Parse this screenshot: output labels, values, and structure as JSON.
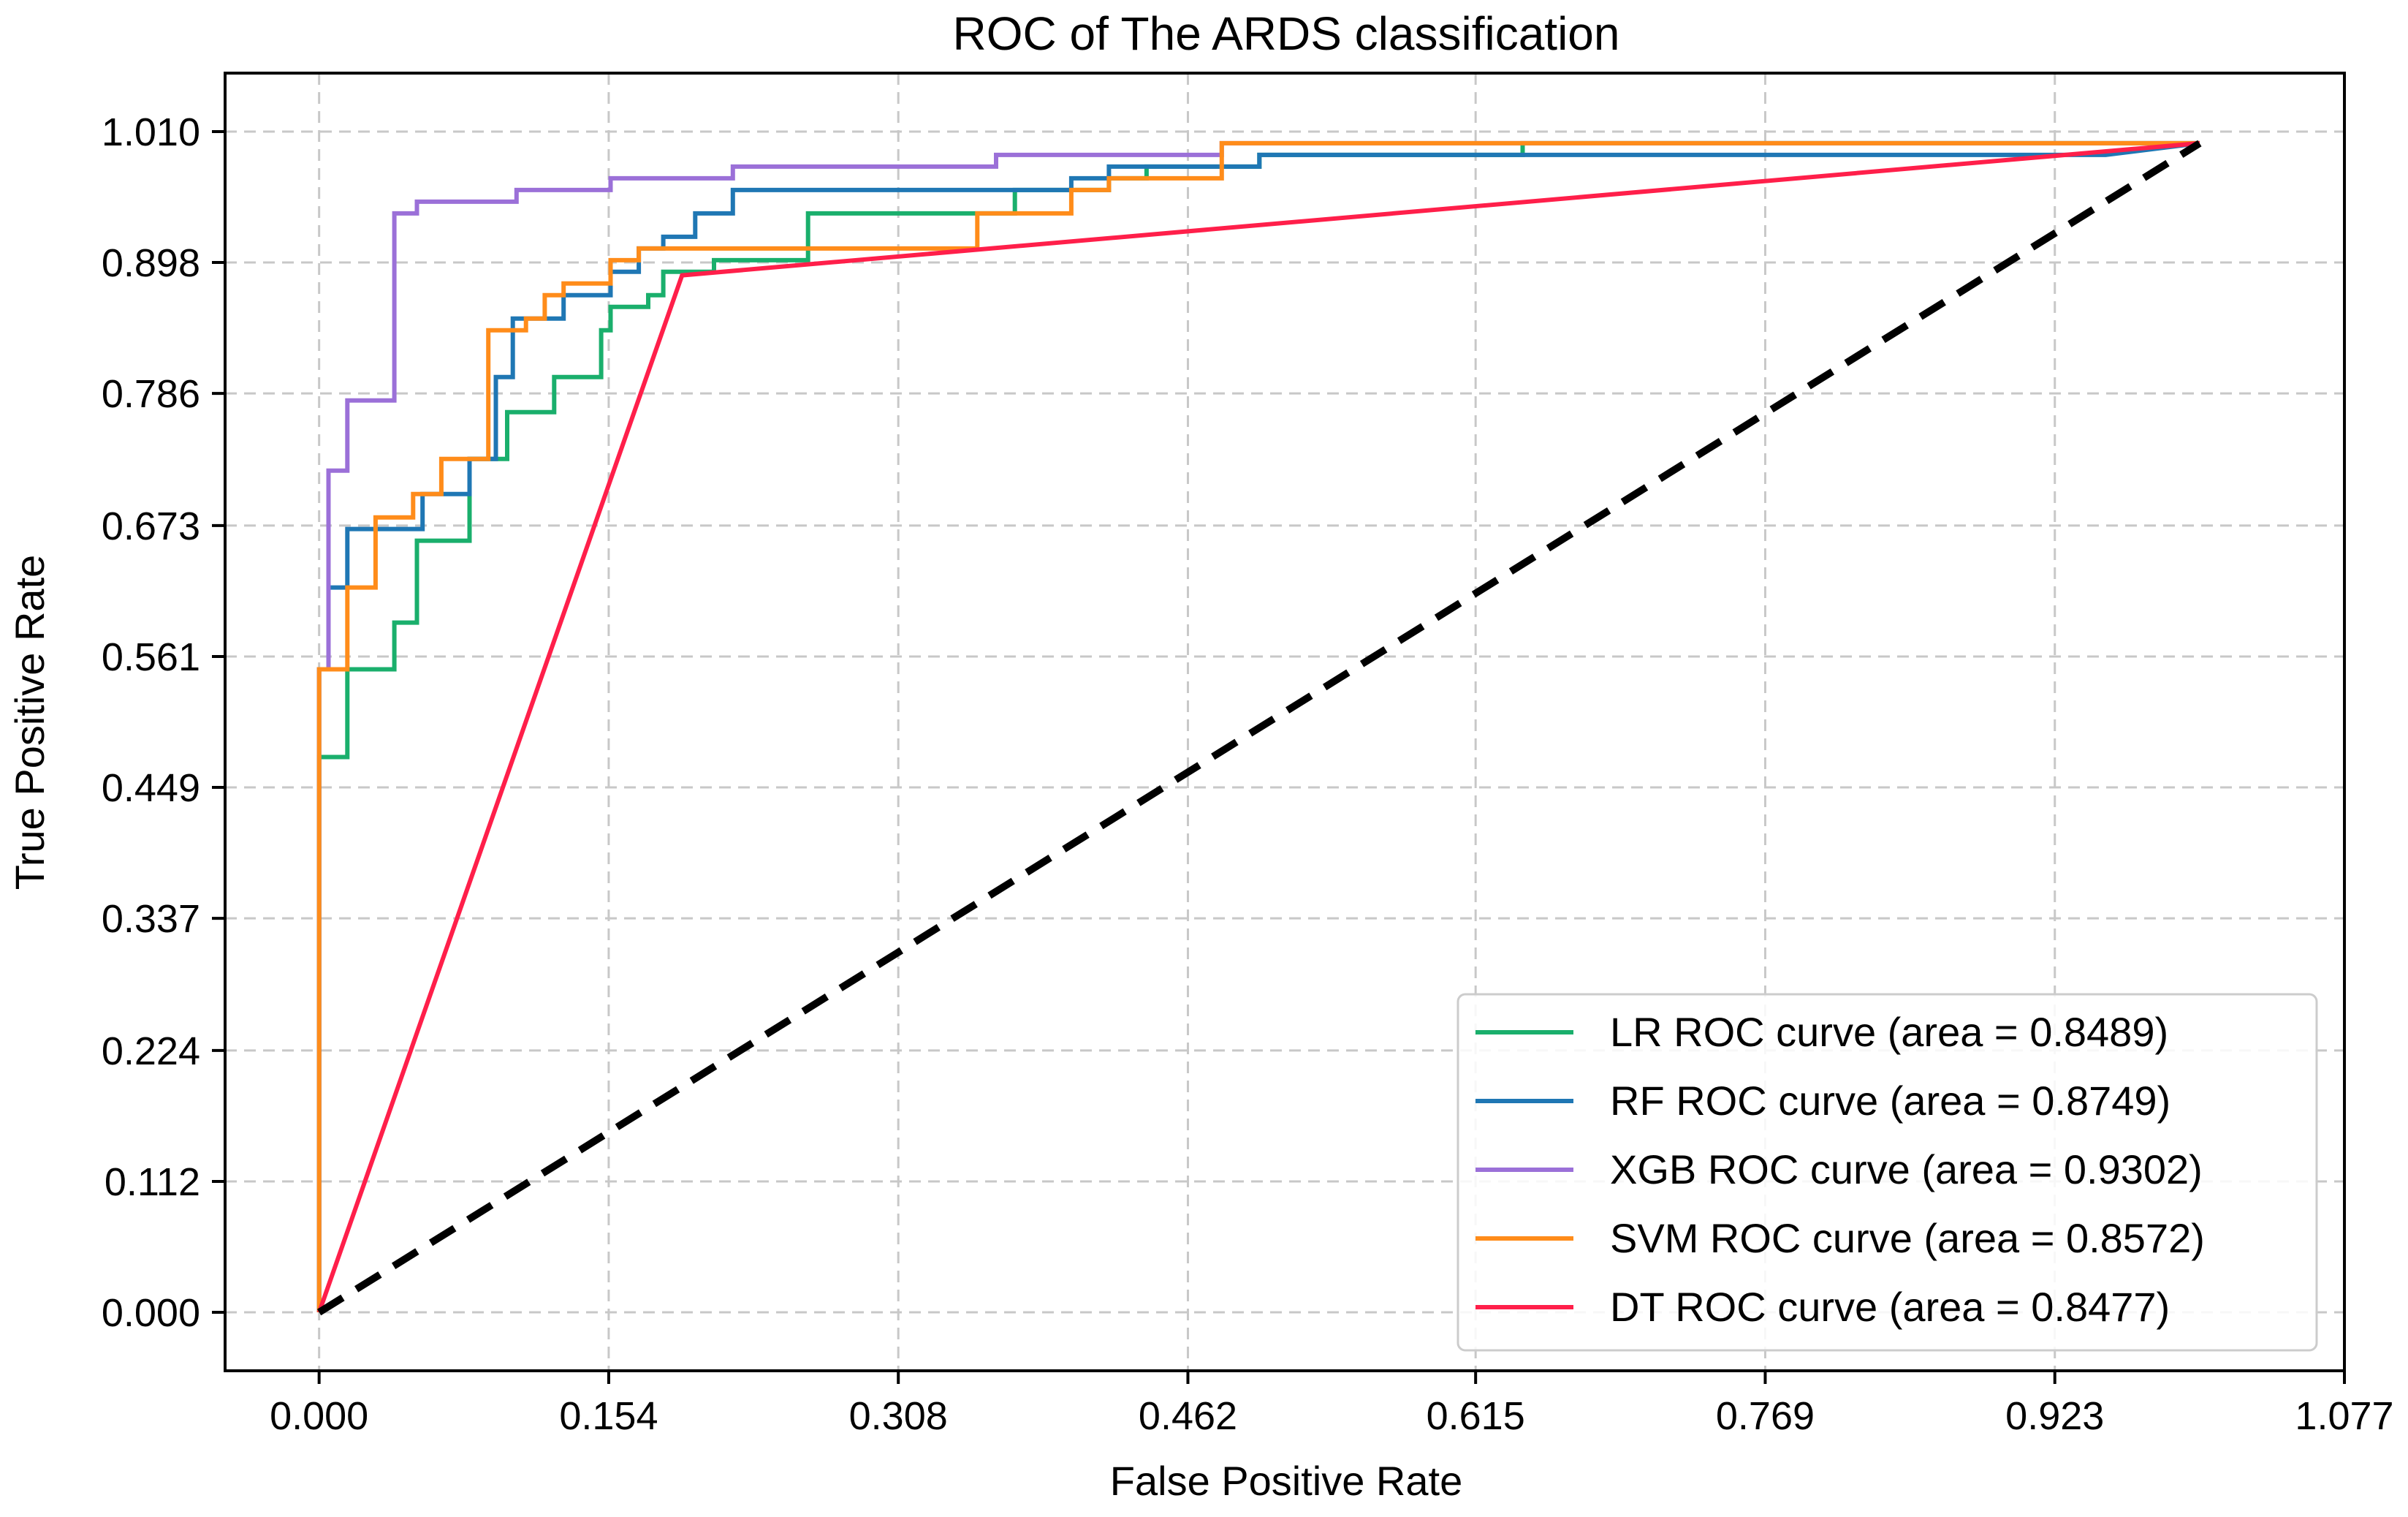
{
  "chart_data": {
    "type": "line",
    "title": "ROC of The ARDS classification",
    "xlabel": "False Positive Rate",
    "ylabel": "True Positive Rate",
    "xlim": [
      -0.05,
      1.077
    ],
    "ylim": [
      -0.05,
      1.06
    ],
    "xticks": [
      0.0,
      0.154,
      0.308,
      0.462,
      0.615,
      0.769,
      0.923,
      1.077
    ],
    "xtick_labels": [
      "0.000",
      "0.154",
      "0.308",
      "0.462",
      "0.615",
      "0.769",
      "0.923",
      "1.077"
    ],
    "yticks": [
      0.0,
      0.112,
      0.224,
      0.337,
      0.449,
      0.561,
      0.673,
      0.786,
      0.898,
      1.01
    ],
    "ytick_labels": [
      "0.000",
      "0.112",
      "0.224",
      "0.337",
      "0.449",
      "0.561",
      "0.673",
      "0.786",
      "0.898",
      "1.010"
    ],
    "grid": true,
    "legend_position": "bottom-right",
    "diagonal": {
      "x": [
        0,
        1
      ],
      "y": [
        0,
        1
      ],
      "color": "#000000",
      "style": "dashed"
    },
    "series": [
      {
        "name": "LR ROC curve (area = 0.8489)",
        "color": "#1aaf6c",
        "x": [
          0,
          0,
          0.005,
          0.005,
          0.015,
          0.015,
          0.04,
          0.04,
          0.052,
          0.052,
          0.08,
          0.08,
          0.1,
          0.1,
          0.125,
          0.125,
          0.15,
          0.15,
          0.155,
          0.155,
          0.175,
          0.175,
          0.183,
          0.183,
          0.21,
          0.21,
          0.26,
          0.26,
          0.37,
          0.37,
          0.4,
          0.4,
          0.42,
          0.42,
          0.44,
          0.44,
          0.5,
          0.5,
          0.55,
          0.55,
          0.64,
          0.64,
          1.0
        ],
        "y": [
          0,
          0.475,
          0.475,
          0.475,
          0.475,
          0.55,
          0.55,
          0.59,
          0.59,
          0.66,
          0.66,
          0.73,
          0.73,
          0.77,
          0.77,
          0.8,
          0.8,
          0.84,
          0.84,
          0.86,
          0.86,
          0.87,
          0.87,
          0.89,
          0.89,
          0.9,
          0.9,
          0.94,
          0.94,
          0.96,
          0.96,
          0.96,
          0.96,
          0.97,
          0.97,
          0.98,
          0.98,
          0.99,
          0.99,
          0.99,
          0.99,
          1.0,
          1.0
        ]
      },
      {
        "name": "RF ROC curve (area = 0.8749)",
        "color": "#1f77b4",
        "x": [
          0,
          0,
          0.005,
          0.005,
          0.015,
          0.015,
          0.055,
          0.055,
          0.08,
          0.08,
          0.094,
          0.094,
          0.103,
          0.103,
          0.13,
          0.13,
          0.155,
          0.155,
          0.17,
          0.17,
          0.183,
          0.183,
          0.2,
          0.2,
          0.22,
          0.22,
          0.4,
          0.4,
          0.42,
          0.42,
          0.44,
          0.44,
          0.5,
          0.5,
          0.52,
          0.52,
          0.95,
          1.0
        ],
        "y": [
          0,
          0.55,
          0.55,
          0.62,
          0.62,
          0.67,
          0.67,
          0.7,
          0.7,
          0.73,
          0.73,
          0.8,
          0.8,
          0.85,
          0.85,
          0.87,
          0.87,
          0.89,
          0.89,
          0.91,
          0.91,
          0.92,
          0.92,
          0.94,
          0.94,
          0.96,
          0.96,
          0.97,
          0.97,
          0.98,
          0.98,
          0.98,
          0.98,
          0.99,
          0.99,
          0.99,
          0.99,
          1.0
        ]
      },
      {
        "name": "XGB ROC curve (area = 0.9302)",
        "color": "#9b70d8",
        "x": [
          0,
          0,
          0.005,
          0.005,
          0.015,
          0.015,
          0.04,
          0.04,
          0.052,
          0.052,
          0.105,
          0.105,
          0.155,
          0.155,
          0.22,
          0.22,
          0.36,
          0.36,
          0.48,
          0.48,
          1.0
        ],
        "y": [
          0,
          0.55,
          0.55,
          0.72,
          0.72,
          0.78,
          0.78,
          0.94,
          0.94,
          0.95,
          0.95,
          0.96,
          0.96,
          0.97,
          0.97,
          0.98,
          0.98,
          0.99,
          0.99,
          1.0,
          1.0
        ]
      },
      {
        "name": "SVM ROC curve (area = 0.8572)",
        "color": "#ff8c1a",
        "x": [
          0,
          0,
          0.015,
          0.015,
          0.03,
          0.03,
          0.05,
          0.05,
          0.065,
          0.065,
          0.075,
          0.075,
          0.09,
          0.09,
          0.11,
          0.11,
          0.12,
          0.12,
          0.13,
          0.13,
          0.155,
          0.155,
          0.17,
          0.17,
          0.35,
          0.35,
          0.4,
          0.4,
          0.42,
          0.42,
          0.48,
          0.48,
          1.0
        ],
        "y": [
          0,
          0.55,
          0.55,
          0.62,
          0.62,
          0.68,
          0.68,
          0.7,
          0.7,
          0.73,
          0.73,
          0.73,
          0.73,
          0.84,
          0.84,
          0.85,
          0.85,
          0.87,
          0.87,
          0.88,
          0.88,
          0.9,
          0.9,
          0.91,
          0.91,
          0.94,
          0.94,
          0.96,
          0.96,
          0.97,
          0.97,
          1.0,
          1.0
        ]
      },
      {
        "name": "DT ROC curve (area = 0.8477)",
        "color": "#ff1f4a",
        "x": [
          0,
          0.193,
          1.0
        ],
        "y": [
          0,
          0.887,
          1.0
        ]
      }
    ]
  }
}
